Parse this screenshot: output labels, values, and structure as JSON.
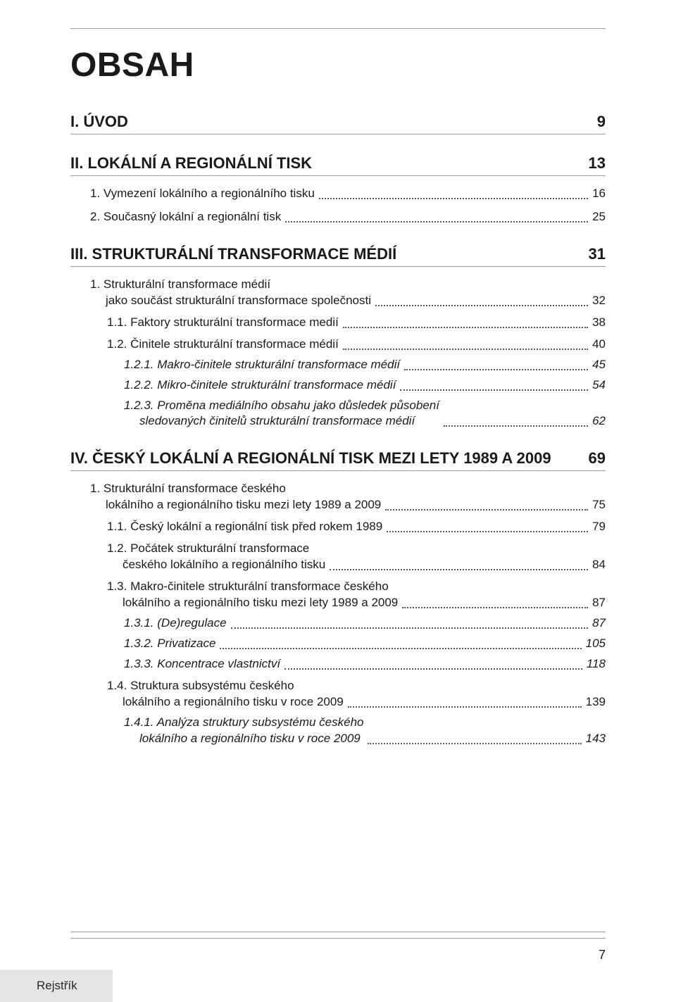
{
  "title": "OBSAH",
  "page_number": "7",
  "footer_tab": "Rejstřík",
  "sections": [
    {
      "heading": "I. ÚVOD",
      "heading_page": "9",
      "entries": []
    },
    {
      "heading": "II. LOKÁLNÍ A REGIONÁLNÍ TISK",
      "heading_page": "13",
      "entries": [
        {
          "level": 1,
          "label": "1. Vymezení lokálního a regionálního tisku",
          "page": "16"
        },
        {
          "level": 1,
          "label": "2. Současný lokální a regionální tisk",
          "page": "25"
        }
      ]
    },
    {
      "heading": "III. STRUKTURÁLNÍ TRANSFORMACE MÉDIÍ",
      "heading_page": "31",
      "entries": [
        {
          "level": 1,
          "label_lines": [
            "1. Strukturální transformace médií",
            "jako součást strukturální transformace společnosti"
          ],
          "page": "32"
        },
        {
          "level": 2,
          "label": "1.1. Faktory strukturální transformace medií",
          "page": "38"
        },
        {
          "level": 2,
          "label": "1.2. Činitele strukturální transformace médií",
          "page": "40"
        },
        {
          "level": 3,
          "label": "1.2.1. Makro-činitele strukturální transformace médií",
          "page": "45",
          "italic": true
        },
        {
          "level": 3,
          "label": "1.2.2. Mikro-činitele strukturální transformace médií",
          "page": "54",
          "italic": true
        },
        {
          "level": 3,
          "label_lines": [
            "1.2.3. Proměna mediálního obsahu jako důsledek působení",
            "sledovaných činitelů strukturální transformace médií"
          ],
          "page": "62",
          "italic": true
        }
      ]
    },
    {
      "heading": "IV. ČESKÝ LOKÁLNÍ A REGIONÁLNÍ TISK MEZI LETY 1989 A 2009",
      "heading_page": "69",
      "entries": [
        {
          "level": 1,
          "label_lines": [
            "1. Strukturální transformace českého",
            "lokálního a regionálního tisku mezi lety 1989 a 2009"
          ],
          "page": "75"
        },
        {
          "level": 2,
          "label": "1.1. Český lokální a regionální tisk před rokem 1989",
          "page": "79"
        },
        {
          "level": 2,
          "label_lines": [
            "1.2. Počátek strukturální transformace",
            "českého lokálního a regionálního tisku"
          ],
          "page": "84"
        },
        {
          "level": 2,
          "label_lines": [
            "1.3. Makro-činitele strukturální transformace českého",
            "lokálního a regionálního tisku mezi lety 1989 a 2009"
          ],
          "page": "87"
        },
        {
          "level": 3,
          "label": "1.3.1. (De)regulace",
          "page": "87",
          "italic": true
        },
        {
          "level": 3,
          "label": "1.3.2. Privatizace",
          "page": "105",
          "italic": true
        },
        {
          "level": 3,
          "label": "1.3.3. Koncentrace vlastnictví",
          "page": "118",
          "italic": true
        },
        {
          "level": 2,
          "label_lines": [
            "1.4. Struktura subsystému českého",
            "lokálního a regionálního tisku v roce 2009"
          ],
          "page": "139"
        },
        {
          "level": 3,
          "label_lines": [
            "1.4.1. Analýza struktury subsystému českého",
            "lokálního a regionálního tisku v roce 2009"
          ],
          "page": "143",
          "italic": true
        }
      ]
    }
  ]
}
